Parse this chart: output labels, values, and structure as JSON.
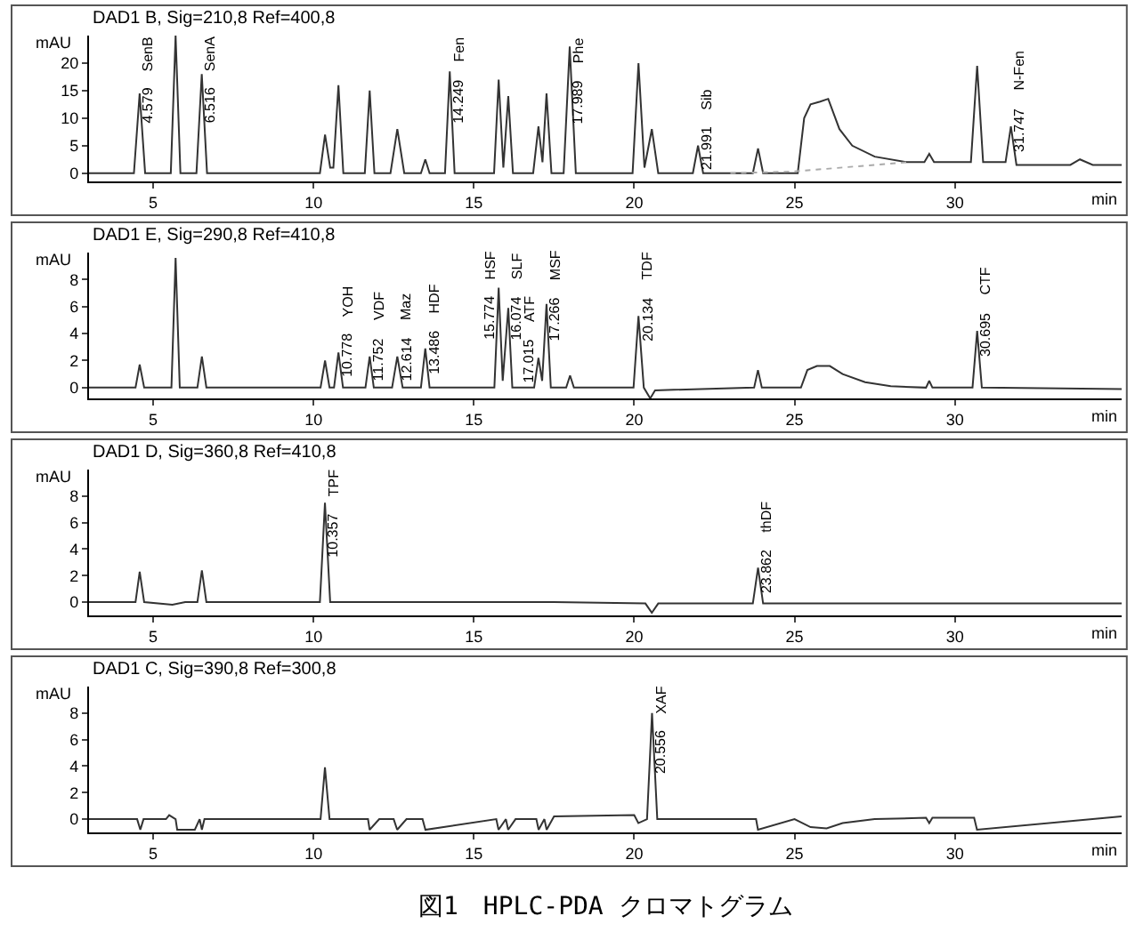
{
  "chart_data": [
    {
      "type": "line",
      "title": "DAD1 B, Sig=210,8 Ref=400,8",
      "xlabel": "min",
      "ylabel": "mAU",
      "xlim": [
        3,
        35.2
      ],
      "xticks": [
        5,
        10,
        15,
        20,
        25,
        30
      ],
      "ylim": [
        -1.5,
        25
      ],
      "yticks": [
        0,
        5,
        10,
        15,
        20
      ],
      "series": [
        {
          "color": "#333333",
          "x": [
            3,
            4.4,
            4.579,
            4.75,
            5.55,
            5.7,
            5.85,
            6.35,
            6.516,
            6.68,
            10.2,
            10.36,
            10.52,
            10.62,
            10.778,
            10.93,
            11.6,
            11.752,
            11.9,
            12.4,
            12.614,
            12.83,
            13.35,
            13.486,
            13.62,
            14.1,
            14.249,
            14.4,
            15.63,
            15.774,
            15.92,
            16.074,
            16.22,
            16.85,
            17.015,
            17.14,
            17.266,
            17.42,
            17.8,
            17.989,
            18.18,
            19.95,
            20.134,
            20.32,
            20.55,
            20.75,
            21.83,
            21.991,
            22.15,
            23.7,
            23.862,
            24.02,
            25.1,
            25.3,
            25.5,
            25.8,
            26.05,
            26.4,
            26.8,
            27.5,
            28.5,
            29.05,
            29.2,
            29.35,
            30.5,
            30.695,
            30.88,
            31.58,
            31.747,
            31.92,
            33.6,
            33.9,
            34.3,
            35.2
          ],
          "values": [
            0,
            0,
            14.5,
            0,
            0,
            25,
            0,
            0,
            18,
            0,
            0,
            7,
            1,
            1,
            16,
            0,
            0,
            15,
            0,
            0,
            8,
            0,
            0,
            2.5,
            0,
            0,
            18.5,
            0,
            0,
            17,
            1,
            14,
            0,
            0,
            8.5,
            2,
            14.5,
            0,
            0,
            23,
            0,
            0,
            20,
            1,
            8,
            0,
            0,
            5,
            0,
            0,
            4.5,
            0,
            0,
            10,
            12.5,
            13,
            13.5,
            8,
            5,
            3,
            2,
            2,
            3.5,
            2,
            2,
            19.5,
            2,
            2,
            8.5,
            1.5,
            1.5,
            2.5,
            1.5,
            1.5
          ]
        },
        {
          "color": "#aaaaaa",
          "line_style": "dotted",
          "x": [
            23,
            25,
            28.5
          ],
          "values": [
            0,
            0.3,
            2
          ]
        }
      ],
      "annotations": [
        {
          "text": "4.579",
          "x": 4.579,
          "y": 14.5
        },
        {
          "text": "SenB",
          "x": 4.579,
          "y": 14.5
        },
        {
          "text": "6.516",
          "x": 6.516,
          "y": 18
        },
        {
          "text": "SenA",
          "x": 6.516,
          "y": 18
        },
        {
          "text": "14.249",
          "x": 14.249,
          "y": 18.5
        },
        {
          "text": "Fen",
          "x": 14.249,
          "y": 18.5
        },
        {
          "text": "17.989",
          "x": 17.989,
          "y": 23
        },
        {
          "text": "Phe",
          "x": 17.989,
          "y": 23
        },
        {
          "text": "21.991",
          "x": 21.991,
          "y": 5
        },
        {
          "text": "Sib",
          "x": 21.991,
          "y": 5
        },
        {
          "text": "31.747",
          "x": 31.747,
          "y": 8.5
        },
        {
          "text": "N-Fen",
          "x": 31.747,
          "y": 8.5
        }
      ]
    },
    {
      "type": "line",
      "title": "DAD1 E, Sig=290,8 Ref=410,8",
      "xlabel": "min",
      "ylabel": "mAU",
      "xlim": [
        3,
        35.2
      ],
      "xticks": [
        5,
        10,
        15,
        20,
        25,
        30
      ],
      "ylim": [
        -0.8,
        10
      ],
      "yticks": [
        0,
        2,
        4,
        6,
        8
      ],
      "series": [
        {
          "color": "#333333",
          "x": [
            3,
            4.45,
            4.58,
            4.72,
            5.57,
            5.7,
            5.83,
            6.38,
            6.52,
            6.66,
            10.22,
            10.36,
            10.5,
            10.64,
            10.778,
            10.92,
            11.62,
            11.752,
            11.88,
            12.45,
            12.614,
            12.78,
            13.35,
            13.486,
            13.62,
            15.64,
            15.774,
            15.9,
            16.074,
            16.2,
            16.88,
            17.015,
            17.13,
            17.266,
            17.4,
            17.88,
            18.0,
            18.12,
            19.98,
            20.134,
            20.3,
            20.5,
            20.65,
            23.74,
            23.86,
            23.98,
            25.2,
            25.4,
            25.7,
            26.1,
            26.5,
            27.2,
            28.0,
            29.1,
            29.2,
            29.3,
            30.55,
            30.695,
            30.84,
            35.2
          ],
          "values": [
            0,
            0,
            1.7,
            0,
            0,
            9.6,
            0,
            0,
            2.3,
            0,
            0,
            2,
            0,
            0,
            2.6,
            0,
            0,
            2.3,
            0,
            0,
            2.3,
            0,
            0,
            2.9,
            0,
            0,
            7.4,
            0.5,
            5.9,
            0,
            0,
            2.2,
            0.5,
            6.2,
            0,
            0,
            0.9,
            0,
            0,
            5.3,
            0,
            -0.8,
            -0.2,
            0,
            1.3,
            0,
            0,
            1.3,
            1.6,
            1.6,
            1,
            0.4,
            0.1,
            0,
            0.5,
            0,
            0,
            4.2,
            0,
            -0.1
          ]
        }
      ],
      "annotations": [
        {
          "text": "10.778",
          "x": 10.778,
          "y": 2.6
        },
        {
          "text": "YOH",
          "x": 10.778,
          "y": 2.6
        },
        {
          "text": "11.752",
          "x": 11.752,
          "y": 2.3
        },
        {
          "text": "VDF",
          "x": 11.752,
          "y": 2.3
        },
        {
          "text": "12.614",
          "x": 12.614,
          "y": 2.3
        },
        {
          "text": "Maz",
          "x": 12.614,
          "y": 2.3
        },
        {
          "text": "13.486",
          "x": 13.486,
          "y": 2.9
        },
        {
          "text": "HDF",
          "x": 13.486,
          "y": 2.9
        },
        {
          "text": "15.774",
          "x": 15.774,
          "y": 7.4
        },
        {
          "text": "HSF",
          "x": 15.774,
          "y": 7.4
        },
        {
          "text": "16.074",
          "x": 16.074,
          "y": 5.9
        },
        {
          "text": "SLF",
          "x": 16.074,
          "y": 5.9
        },
        {
          "text": "17.015",
          "x": 17.015,
          "y": 2.2
        },
        {
          "text": "ATF",
          "x": 17.015,
          "y": 2.2
        },
        {
          "text": "17.266",
          "x": 17.266,
          "y": 6.2
        },
        {
          "text": "MSF",
          "x": 17.266,
          "y": 6.2
        },
        {
          "text": "20.134",
          "x": 20.134,
          "y": 5.3
        },
        {
          "text": "TDF",
          "x": 20.134,
          "y": 5.3
        },
        {
          "text": "30.695",
          "x": 30.695,
          "y": 4.2
        },
        {
          "text": "CTF",
          "x": 30.695,
          "y": 4.2
        }
      ]
    },
    {
      "type": "line",
      "title": "DAD1 D, Sig=360,8 Ref=410,8",
      "xlabel": "min",
      "ylabel": "mAU",
      "xlim": [
        3,
        35.2
      ],
      "xticks": [
        5,
        10,
        15,
        20,
        25,
        30
      ],
      "ylim": [
        -1,
        10
      ],
      "yticks": [
        0,
        2,
        4,
        6,
        8
      ],
      "series": [
        {
          "color": "#333333",
          "x": [
            3,
            4.45,
            4.58,
            4.72,
            5.6,
            6.0,
            6.38,
            6.52,
            6.66,
            10.2,
            10.357,
            10.52,
            15.8,
            17.5,
            20.35,
            20.55,
            20.75,
            23.7,
            23.862,
            24.02,
            30.6,
            35.2
          ],
          "values": [
            0,
            0,
            2.3,
            0,
            -0.2,
            0,
            0,
            2.4,
            0,
            0,
            7.5,
            0,
            0,
            0,
            -0.1,
            -0.8,
            -0.1,
            -0.1,
            2.6,
            -0.1,
            -0.1,
            -0.1
          ]
        }
      ],
      "annotations": [
        {
          "text": "10.357",
          "x": 10.357,
          "y": 7.5
        },
        {
          "text": "TPF",
          "x": 10.357,
          "y": 7.5
        },
        {
          "text": "23.862",
          "x": 23.862,
          "y": 2.6
        },
        {
          "text": "thDF",
          "x": 23.862,
          "y": 2.6
        }
      ]
    },
    {
      "type": "line",
      "title": "DAD1 C, Sig=390,8 Ref=300,8",
      "xlabel": "min",
      "ylabel": "mAU",
      "xlim": [
        3,
        35.2
      ],
      "xticks": [
        5,
        10,
        15,
        20,
        25,
        30
      ],
      "ylim": [
        -1,
        10
      ],
      "yticks": [
        0,
        2,
        4,
        6,
        8
      ],
      "series": [
        {
          "color": "#333333",
          "x": [
            3,
            4.5,
            4.6,
            4.7,
            5.4,
            5.5,
            5.7,
            5.75,
            6.3,
            6.45,
            6.52,
            6.6,
            10.22,
            10.357,
            10.5,
            11.7,
            11.75,
            12.05,
            12.5,
            12.61,
            12.9,
            13.4,
            13.49,
            15.7,
            15.77,
            16.0,
            16.07,
            16.3,
            16.95,
            17.02,
            17.2,
            17.27,
            17.5,
            20.0,
            20.13,
            20.4,
            20.556,
            20.72,
            23.8,
            23.86,
            25.0,
            25.5,
            26.0,
            26.5,
            27.5,
            29.1,
            29.2,
            29.3,
            30.6,
            30.69,
            35.2
          ],
          "values": [
            0,
            0,
            -0.8,
            0,
            0,
            0.3,
            0,
            -0.8,
            -0.8,
            0,
            -0.8,
            0,
            0,
            3.9,
            0,
            0,
            -0.8,
            0,
            0,
            -0.8,
            0,
            0,
            -0.8,
            0,
            -0.8,
            0,
            -0.8,
            0,
            0,
            -0.8,
            0,
            -0.8,
            0.2,
            0.3,
            -0.3,
            0,
            8,
            0,
            0,
            -0.8,
            0,
            -0.6,
            -0.7,
            -0.3,
            0,
            0.1,
            -0.3,
            0.1,
            0.1,
            -0.8,
            0.2
          ]
        }
      ],
      "annotations": [
        {
          "text": "20.556",
          "x": 20.556,
          "y": 8
        },
        {
          "text": "XAF",
          "x": 20.556,
          "y": 8
        },
        "図1　HPLC-PDA クロマトグラム"
      ]
    }
  ]
}
